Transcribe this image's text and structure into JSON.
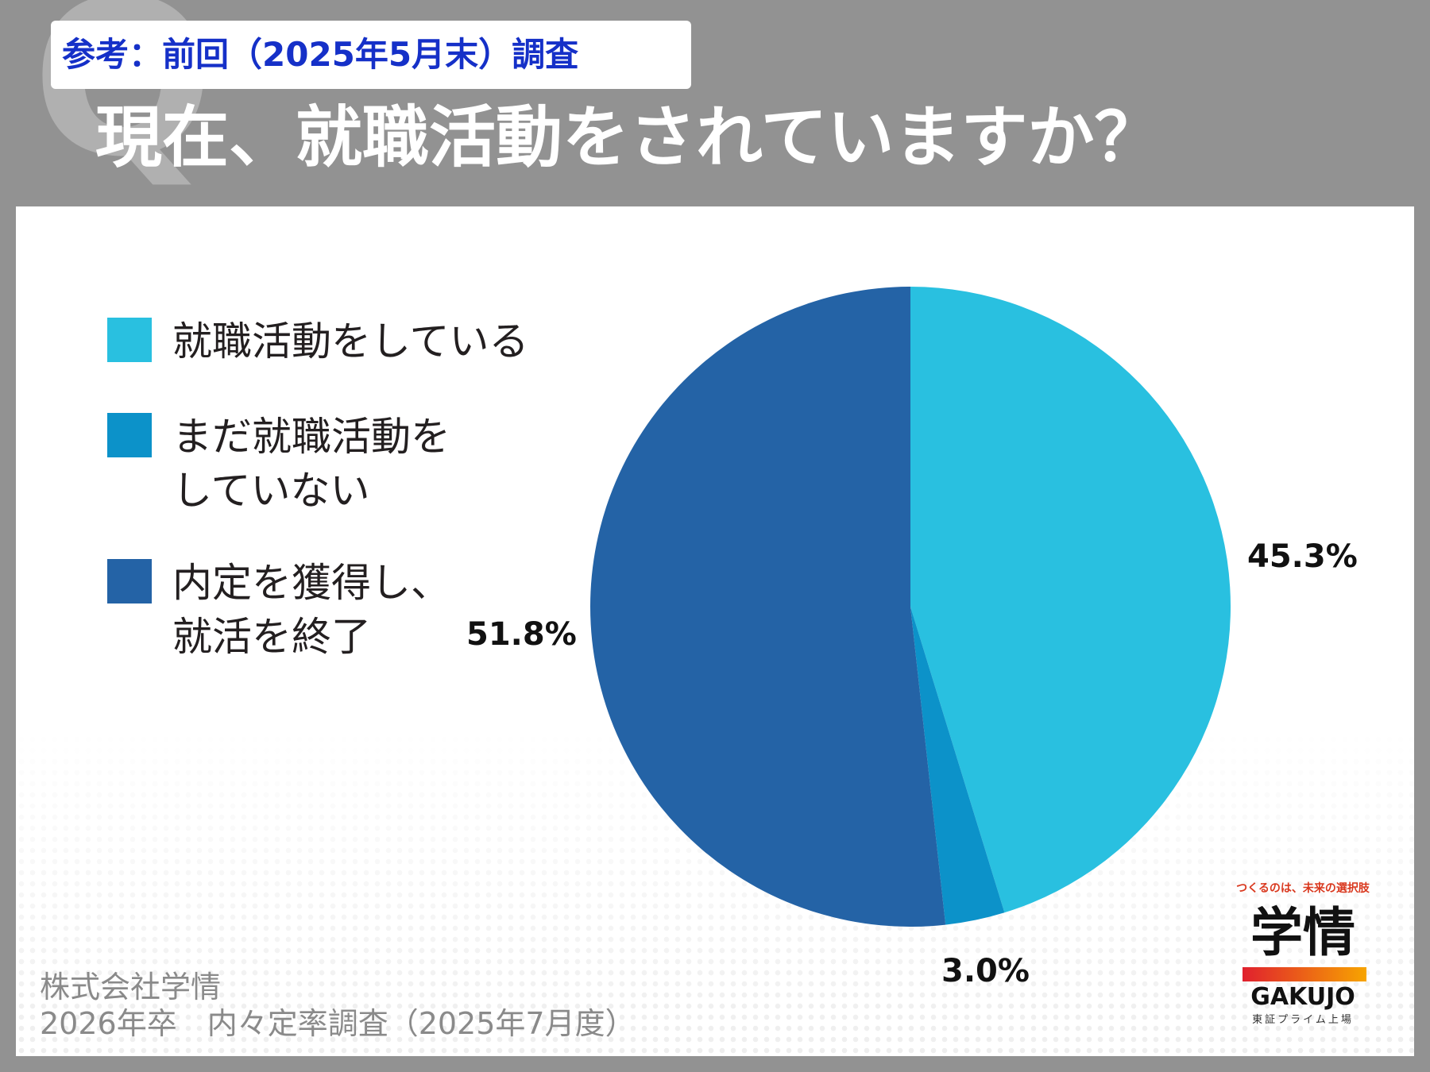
{
  "header": {
    "tag": "参考：前回（2025年5月末）調査",
    "title": "現在、就職活動をされていますか？",
    "q_mark": "Q"
  },
  "chart_data": {
    "type": "pie",
    "start": "12 o'clock, clockwise",
    "legend_position": "left",
    "slices": [
      {
        "label": "就職活動をしている",
        "value": 45.3,
        "display": "45.3%",
        "color": "#29c0e0"
      },
      {
        "label": "まだ就職活動を\nしていない",
        "value": 3.0,
        "display": "3.0%",
        "color": "#0c92c9"
      },
      {
        "label": "内定を獲得し、\n就活を終了",
        "value": 51.8,
        "display": "51.8%",
        "color": "#2463a6"
      }
    ]
  },
  "footer": {
    "company": "株式会社学情",
    "survey": "2026年卒　内々定率調査（2025年7月度）"
  },
  "logo": {
    "tagline": "つくるのは、未来の選択肢",
    "kanji": "学情",
    "english": "GAKUJO",
    "sub": "東証プライム上場"
  }
}
